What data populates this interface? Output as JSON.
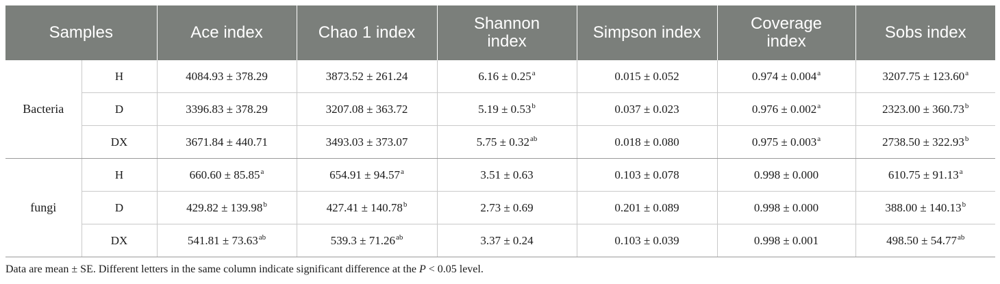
{
  "header": {
    "samples": "Samples",
    "ace": "Ace index",
    "chao1": "Chao 1 index",
    "shannon": "Shannon index",
    "simpson": "Simpson index",
    "coverage": "Coverage index",
    "sobs": "Sobs index"
  },
  "groups": [
    {
      "name": "Bacteria",
      "rows": [
        {
          "sample": "H",
          "ace": {
            "v": "4084.93 ± 378.29",
            "s": ""
          },
          "chao1": {
            "v": "3873.52 ± 261.24",
            "s": ""
          },
          "shannon": {
            "v": "6.16 ± 0.25",
            "s": "a"
          },
          "simpson": {
            "v": "0.015 ± 0.052",
            "s": ""
          },
          "coverage": {
            "v": "0.974 ± 0.004",
            "s": "a"
          },
          "sobs": {
            "v": "3207.75 ± 123.60",
            "s": "a"
          }
        },
        {
          "sample": "D",
          "ace": {
            "v": "3396.83 ± 378.29",
            "s": ""
          },
          "chao1": {
            "v": "3207.08 ± 363.72",
            "s": ""
          },
          "shannon": {
            "v": "5.19 ± 0.53",
            "s": "b"
          },
          "simpson": {
            "v": "0.037 ± 0.023",
            "s": ""
          },
          "coverage": {
            "v": "0.976 ± 0.002",
            "s": "a"
          },
          "sobs": {
            "v": "2323.00 ± 360.73",
            "s": "b"
          }
        },
        {
          "sample": "DX",
          "ace": {
            "v": "3671.84 ± 440.71",
            "s": ""
          },
          "chao1": {
            "v": "3493.03 ± 373.07",
            "s": ""
          },
          "shannon": {
            "v": "5.75 ± 0.32",
            "s": "ab"
          },
          "simpson": {
            "v": "0.018 ± 0.080",
            "s": ""
          },
          "coverage": {
            "v": "0.975 ± 0.003",
            "s": "a"
          },
          "sobs": {
            "v": "2738.50 ± 322.93",
            "s": "b"
          }
        }
      ]
    },
    {
      "name": "fungi",
      "rows": [
        {
          "sample": "H",
          "ace": {
            "v": "660.60 ± 85.85",
            "s": "a"
          },
          "chao1": {
            "v": "654.91 ± 94.57",
            "s": "a"
          },
          "shannon": {
            "v": "3.51 ± 0.63",
            "s": ""
          },
          "simpson": {
            "v": "0.103 ± 0.078",
            "s": ""
          },
          "coverage": {
            "v": "0.998 ± 0.000",
            "s": ""
          },
          "sobs": {
            "v": "610.75 ± 91.13",
            "s": "a"
          }
        },
        {
          "sample": "D",
          "ace": {
            "v": "429.82 ± 139.98",
            "s": "b"
          },
          "chao1": {
            "v": "427.41 ± 140.78",
            "s": "b"
          },
          "shannon": {
            "v": "2.73 ± 0.69",
            "s": ""
          },
          "simpson": {
            "v": "0.201 ± 0.089",
            "s": ""
          },
          "coverage": {
            "v": "0.998 ± 0.000",
            "s": ""
          },
          "sobs": {
            "v": "388.00 ± 140.13",
            "s": "b"
          }
        },
        {
          "sample": "DX",
          "ace": {
            "v": "541.81 ± 73.63",
            "s": "ab"
          },
          "chao1": {
            "v": "539.3 ± 71.26",
            "s": "ab"
          },
          "shannon": {
            "v": "3.37 ± 0.24",
            "s": ""
          },
          "simpson": {
            "v": "0.103 ± 0.039",
            "s": ""
          },
          "coverage": {
            "v": "0.998 ± 0.001",
            "s": ""
          },
          "sobs": {
            "v": "498.50 ± 54.77",
            "s": "ab"
          }
        }
      ]
    }
  ],
  "footnote": {
    "pre": "Data are mean ± SE. Different letters in the same column indicate significant difference at the ",
    "p": "P",
    "post": " < 0.05 level."
  },
  "colors": {
    "header_bg": "#7b7f7b",
    "header_text": "#ffffff",
    "grid": "#c9c9c9"
  }
}
